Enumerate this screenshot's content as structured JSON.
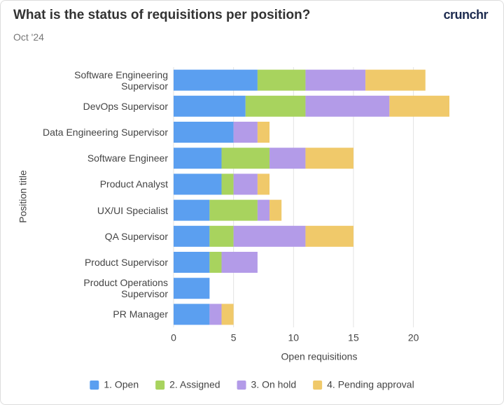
{
  "chart_data": {
    "type": "stacked-barh",
    "title": "What is the status of requisitions per position?",
    "subtitle": "Oct '24",
    "logo": "crunchr",
    "x_label": "Open requisitions",
    "y_label": "Position title",
    "categories": [
      "Software Engineering Supervisor",
      "DevOps Supervisor",
      "Data Engineering Supervisor",
      "Software Engineer",
      "Product Analyst",
      "UX/UI Specialist",
      "QA Supervisor",
      "Product Supervisor",
      "Product Operations Supervisor",
      "PR Manager"
    ],
    "series": [
      {
        "name": "1. Open",
        "color": "#5b9ff0",
        "values": [
          7,
          6,
          5,
          4,
          4,
          3,
          3,
          3,
          3,
          3
        ]
      },
      {
        "name": "2. Assigned",
        "color": "#a8d35e",
        "values": [
          4,
          5,
          0,
          4,
          1,
          4,
          2,
          1,
          0,
          0
        ]
      },
      {
        "name": "3. On hold",
        "color": "#b39be8",
        "values": [
          5,
          7,
          2,
          3,
          2,
          1,
          6,
          3,
          0,
          1
        ]
      },
      {
        "name": "4. Pending approval",
        "color": "#f0c96a",
        "values": [
          5,
          5,
          1,
          4,
          1,
          1,
          4,
          0,
          0,
          1
        ]
      }
    ],
    "xlim": [
      0,
      23
    ],
    "xticks": [
      0,
      5,
      10,
      15,
      20
    ],
    "grid": true,
    "legend": "bottom"
  }
}
